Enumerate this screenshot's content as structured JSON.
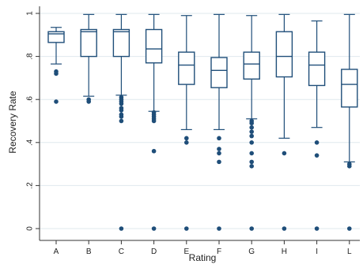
{
  "chart_data": {
    "type": "box",
    "xlabel": "Rating",
    "ylabel": "Recovery Rate",
    "ylim": [
      0,
      1
    ],
    "yticks": [
      {
        "value": 0,
        "label": "0"
      },
      {
        "value": 0.2,
        "label": ".2"
      },
      {
        "value": 0.4,
        "label": ".4"
      },
      {
        "value": 0.6,
        "label": ".6"
      },
      {
        "value": 0.8,
        "label": ".8"
      },
      {
        "value": 1,
        "label": "1"
      }
    ],
    "grid": true,
    "color": "#1f4e79",
    "categories": [
      "A",
      "B",
      "C",
      "D",
      "E",
      "F",
      "G",
      "H",
      "I",
      "L"
    ],
    "boxes": [
      {
        "category": "A",
        "whisker_low": 0.765,
        "q1": 0.865,
        "median": 0.905,
        "q3": 0.915,
        "whisker_high": 0.935,
        "outliers": [
          0.73,
          0.72,
          0.59
        ]
      },
      {
        "category": "B",
        "whisker_low": 0.615,
        "q1": 0.8,
        "median": 0.915,
        "q3": 0.925,
        "whisker_high": 0.995,
        "outliers": [
          0.6,
          0.59
        ]
      },
      {
        "category": "C",
        "whisker_low": 0.62,
        "q1": 0.8,
        "median": 0.915,
        "q3": 0.925,
        "whisker_high": 0.995,
        "outliers": [
          0.61,
          0.6,
          0.59,
          0.58,
          0.56,
          0.55,
          0.53,
          0.52,
          0.5,
          0
        ]
      },
      {
        "category": "D",
        "whisker_low": 0.545,
        "q1": 0.77,
        "median": 0.835,
        "q3": 0.925,
        "whisker_high": 0.995,
        "outliers": [
          0.54,
          0.53,
          0.52,
          0.51,
          0.5,
          0.36,
          0
        ]
      },
      {
        "category": "E",
        "whisker_low": 0.46,
        "q1": 0.67,
        "median": 0.76,
        "q3": 0.82,
        "whisker_high": 0.99,
        "outliers": [
          0.42,
          0.4,
          0
        ]
      },
      {
        "category": "F",
        "whisker_low": 0.46,
        "q1": 0.655,
        "median": 0.735,
        "q3": 0.795,
        "whisker_high": 0.995,
        "outliers": [
          0.42,
          0.37,
          0.35,
          0.31,
          0
        ]
      },
      {
        "category": "G",
        "whisker_low": 0.51,
        "q1": 0.695,
        "median": 0.765,
        "q3": 0.82,
        "whisker_high": 0.99,
        "outliers": [
          0.5,
          0.49,
          0.47,
          0.45,
          0.43,
          0.4,
          0.35,
          0.31,
          0.29,
          0
        ]
      },
      {
        "category": "H",
        "whisker_low": 0.42,
        "q1": 0.705,
        "median": 0.8,
        "q3": 0.915,
        "whisker_high": 0.995,
        "outliers": [
          0.35,
          0
        ]
      },
      {
        "category": "I",
        "whisker_low": 0.47,
        "q1": 0.665,
        "median": 0.76,
        "q3": 0.82,
        "whisker_high": 0.965,
        "outliers": [
          0.4,
          0.34,
          0
        ]
      },
      {
        "category": "L",
        "whisker_low": 0.31,
        "q1": 0.565,
        "median": 0.67,
        "q3": 0.74,
        "whisker_high": 0.995,
        "outliers": [
          0.3,
          0.29,
          0
        ]
      }
    ]
  }
}
